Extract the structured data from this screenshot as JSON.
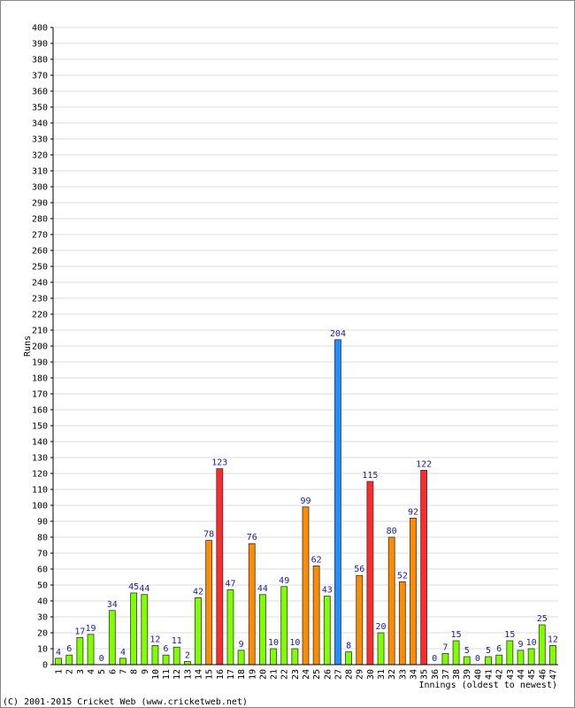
{
  "chart_data": {
    "type": "bar",
    "ylabel": "Runs",
    "xlabel": "Innings (oldest to newest)",
    "ylim": [
      0,
      400
    ],
    "ytick_step": 10,
    "grid": true,
    "categories": [
      "1",
      "2",
      "3",
      "4",
      "5",
      "6",
      "7",
      "8",
      "9",
      "10",
      "11",
      "12",
      "13",
      "14",
      "15",
      "16",
      "17",
      "18",
      "19",
      "20",
      "21",
      "22",
      "23",
      "24",
      "25",
      "26",
      "27",
      "28",
      "29",
      "30",
      "31",
      "32",
      "33",
      "34",
      "35",
      "36",
      "37",
      "38",
      "39",
      "40",
      "41",
      "42",
      "43",
      "44",
      "45",
      "46",
      "47"
    ],
    "values": [
      4,
      6,
      17,
      19,
      0,
      34,
      4,
      45,
      44,
      12,
      6,
      11,
      2,
      42,
      78,
      123,
      47,
      9,
      76,
      44,
      10,
      49,
      10,
      99,
      62,
      43,
      204,
      8,
      56,
      115,
      20,
      80,
      52,
      92,
      122,
      0,
      7,
      15,
      5,
      0,
      5,
      6,
      15,
      9,
      10,
      25,
      12
    ],
    "bar_colors": {
      "under_50": "#80ff00",
      "fifty": "#ff8c00",
      "hundred": "#ff2a2a",
      "double_hundred": "#1e90ff",
      "outline": "#333333"
    },
    "grid_color": "#dddddd",
    "label_color": "#1a1aa0"
  },
  "footer": {
    "copyright": "(C) 2001-2015 Cricket Web (www.cricketweb.net)"
  }
}
